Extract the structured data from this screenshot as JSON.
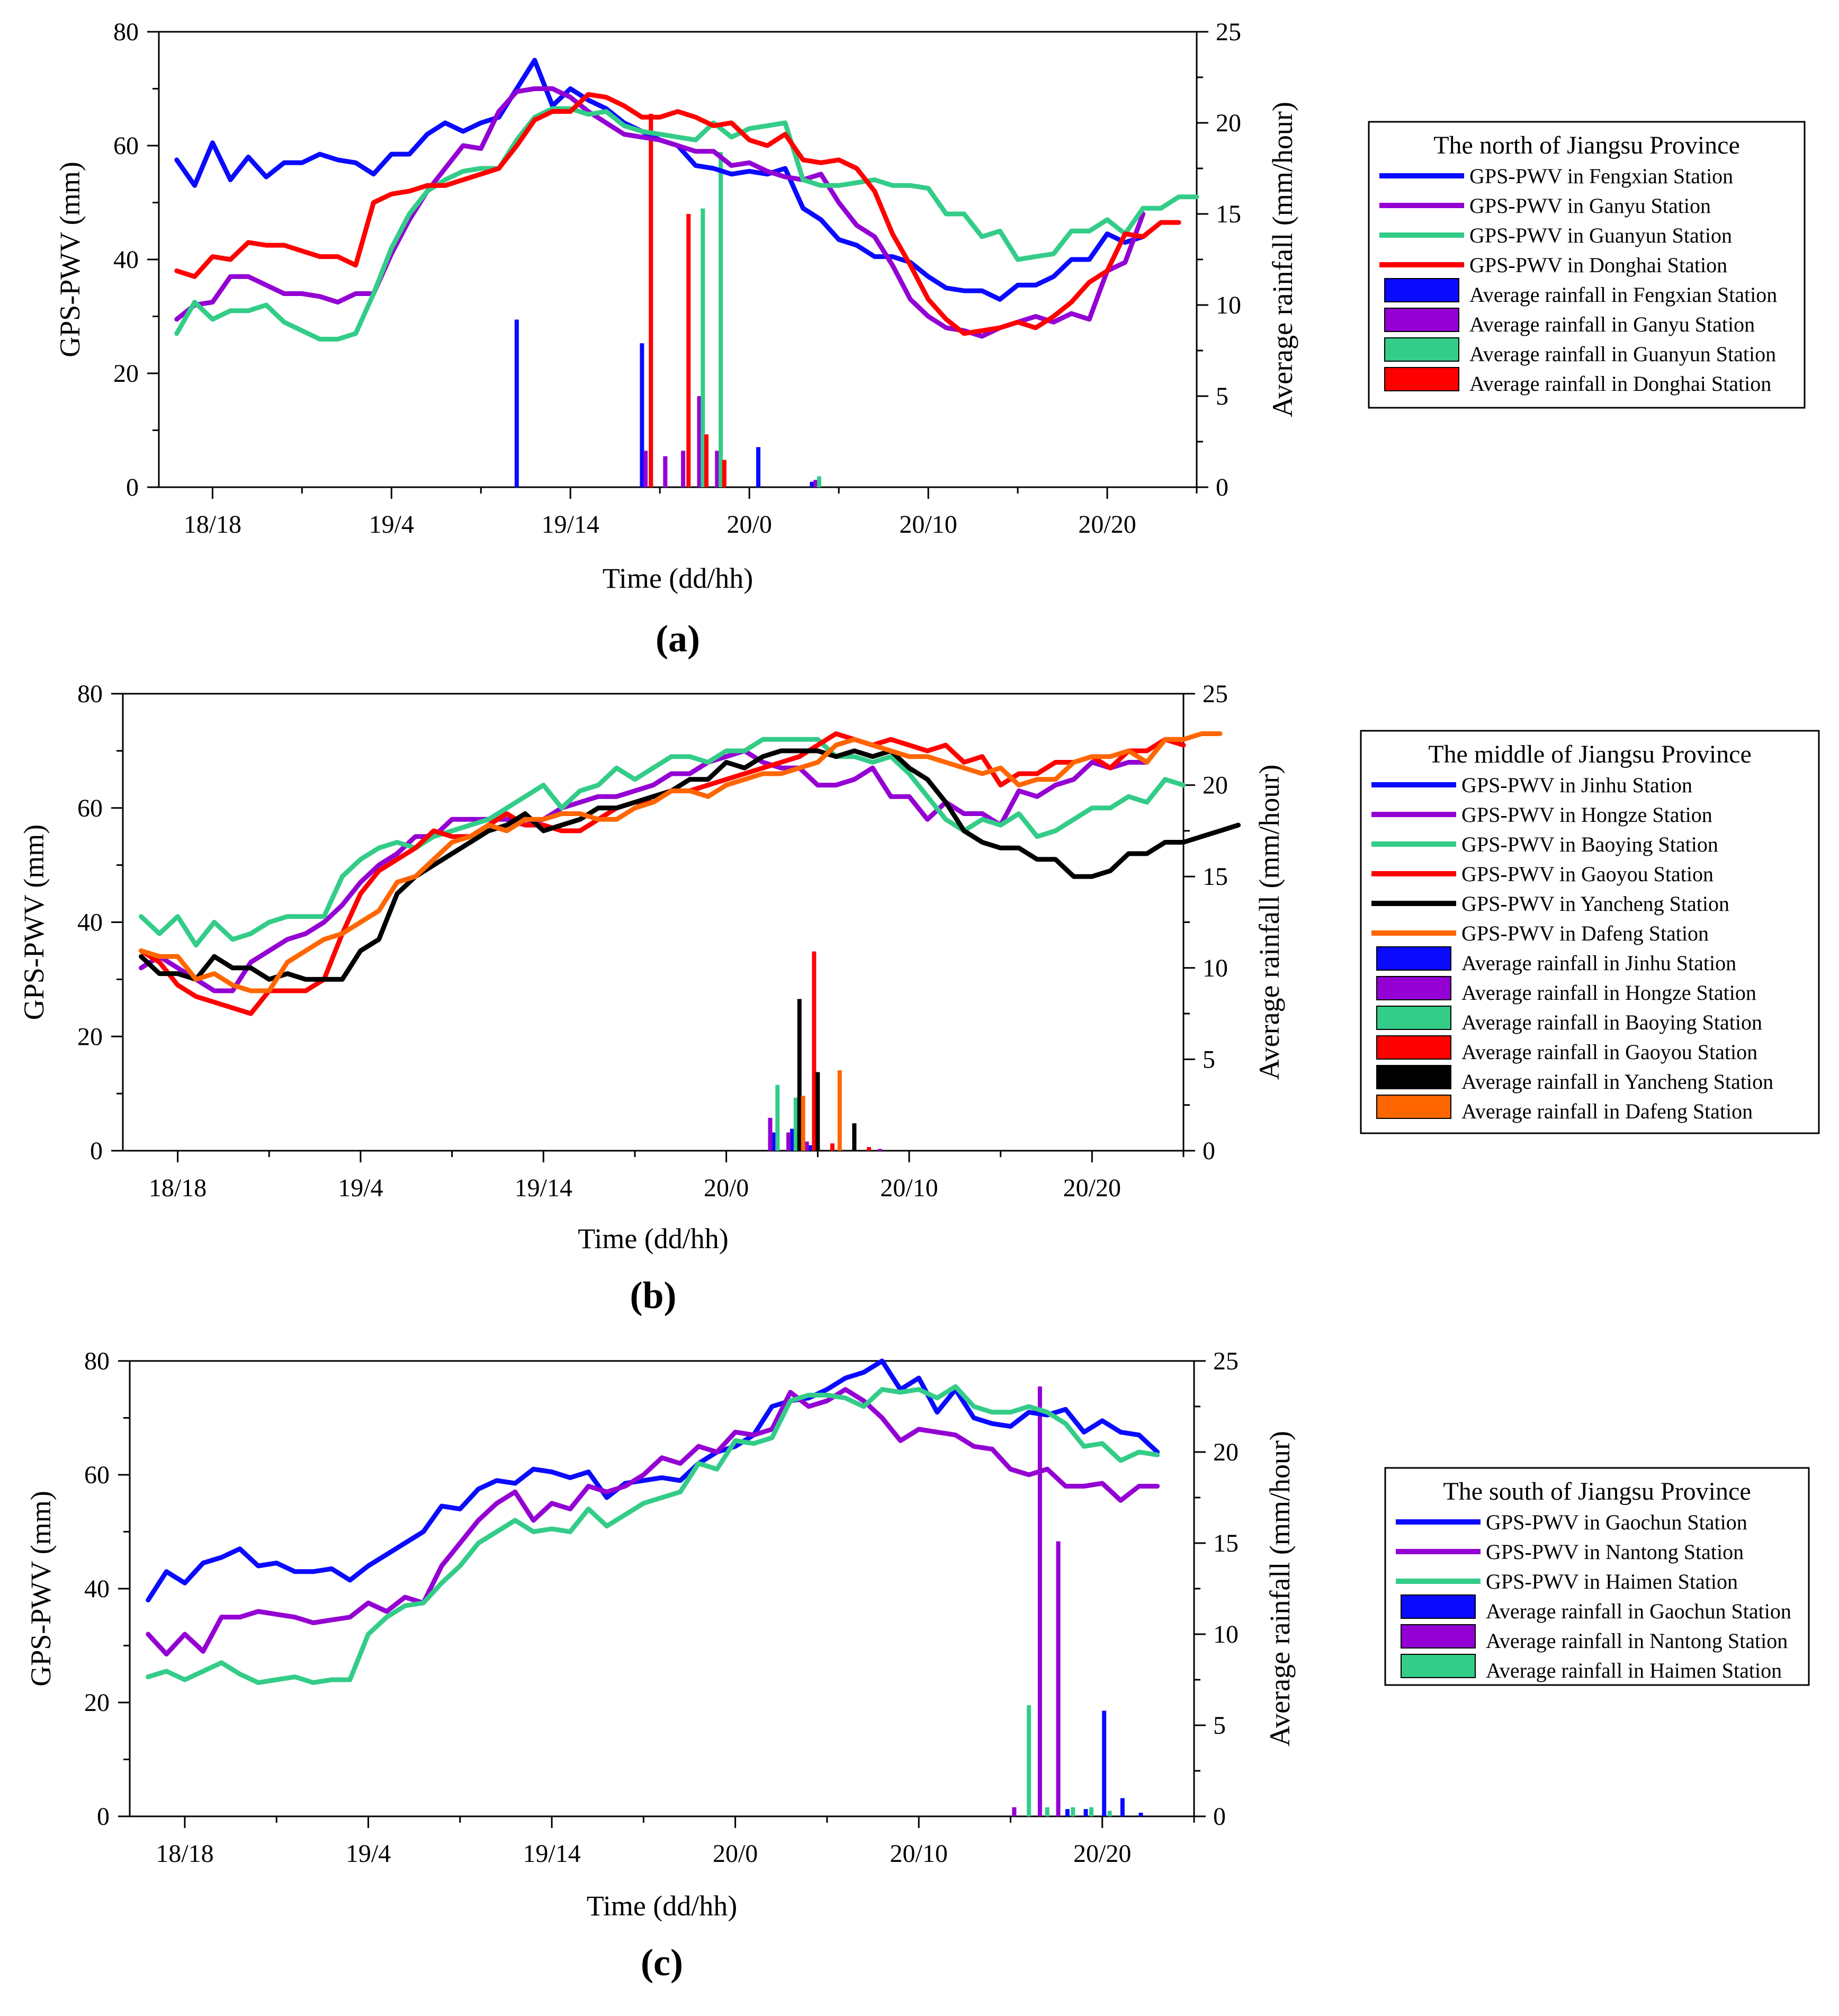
{
  "figure": {
    "panels": 3
  },
  "chart_data": [
    {
      "type": "line+bar",
      "panel_label": "(a)",
      "xlabel": "Time (dd/hh)",
      "ylabel": "GPS-PWV (mm)",
      "y2label": "Average rainfall  (mm/hour)",
      "x_ticks": [
        "18/18",
        "19/4",
        "19/14",
        "20/0",
        "20/10",
        "20/20"
      ],
      "x_tick_hours": [
        0,
        10,
        20,
        30,
        40,
        50
      ],
      "xlim": [
        -3,
        55
      ],
      "ylim": [
        0,
        80
      ],
      "y_ticks": [
        0,
        20,
        40,
        60,
        80
      ],
      "y2lim": [
        0,
        25
      ],
      "y2_ticks": [
        0,
        5,
        10,
        15,
        20,
        25
      ],
      "legend_title": "The north of Jiangsu Province",
      "legend_position": "right",
      "series": [
        {
          "name": "GPS-PWV in Fengxian Station",
          "color": "#0a0aff",
          "x0": -2,
          "values": [
            57.5,
            53,
            60.5,
            54,
            58,
            54.5,
            57,
            57,
            58.5,
            57.5,
            57,
            55,
            58.5,
            58.5,
            62,
            64,
            62.5,
            64,
            65,
            70,
            75,
            67,
            70,
            68,
            66.5,
            64,
            62.5,
            61,
            60,
            56.5,
            56,
            55,
            55.5,
            55,
            56,
            49,
            47,
            43.5,
            42.5,
            40.5,
            40.5,
            39.5,
            37,
            35,
            34.5,
            34.5,
            33,
            35.5,
            35.5,
            37,
            40,
            40,
            44.5,
            43,
            44
          ]
        },
        {
          "name": "GPS-PWV in Ganyu Station",
          "color": "#9400d3",
          "x0": -2,
          "values": [
            29.5,
            32,
            32.5,
            37,
            37,
            35.5,
            34,
            34,
            33.5,
            32.5,
            34,
            34,
            41,
            47,
            52,
            56,
            60,
            59.5,
            66,
            69.5,
            70,
            70,
            68.5,
            66,
            64,
            62,
            61.5,
            61,
            60,
            59,
            59,
            56.5,
            57,
            55.5,
            54.5,
            54,
            55,
            50,
            46,
            44,
            39,
            33,
            30,
            28,
            27.5,
            26.5,
            28,
            29,
            30,
            29,
            30.5,
            29.5,
            38,
            39.5,
            48
          ]
        },
        {
          "name": "GPS-PWV in Guanyun Station",
          "color": "#33cc88",
          "x0": -2,
          "values": [
            27,
            32.5,
            29.5,
            31,
            31,
            32,
            29,
            27.5,
            26,
            26,
            27,
            34,
            42,
            48,
            52,
            54,
            55.5,
            56,
            56,
            61,
            65,
            66.5,
            66.5,
            65.5,
            66,
            63.5,
            62.5,
            62,
            61.5,
            61,
            64,
            61.5,
            63,
            63.5,
            64,
            54,
            53,
            53,
            53.5,
            54,
            53,
            53,
            52.5,
            48,
            48,
            44,
            45,
            40,
            40.5,
            41,
            45,
            45,
            47,
            44.5,
            49,
            49,
            51,
            51
          ]
        },
        {
          "name": "GPS-PWV in Donghai Station",
          "color": "#ff0000",
          "x0": -2,
          "values": [
            38,
            37,
            40.5,
            40,
            43,
            42.5,
            42.5,
            41.5,
            40.5,
            40.5,
            39,
            50,
            51.5,
            52,
            53,
            53,
            54,
            55,
            56,
            60,
            64.5,
            66,
            66,
            69,
            68.5,
            67,
            65,
            65,
            66,
            65,
            63.5,
            64,
            61,
            60,
            62,
            57.5,
            57,
            57.5,
            56,
            52,
            44.5,
            39,
            33,
            29.5,
            27,
            27.5,
            28,
            29,
            28,
            30,
            32.5,
            36,
            38,
            44.5,
            44,
            46.5,
            46.5
          ]
        }
      ],
      "bars": [
        {
          "name": "Average rainfall in Fengxian Station",
          "color": "#0a0aff",
          "x": [
            17,
            24,
            30.5,
            33.5
          ],
          "values": [
            9.2,
            7.9,
            2.2,
            0.3
          ]
        },
        {
          "name": "Average rainfall in Ganyu Station",
          "color": "#9400d3",
          "x": [
            24.2,
            25.3,
            26.3,
            27.2,
            28.2,
            33.7
          ],
          "values": [
            2.0,
            1.7,
            2.0,
            5.0,
            2.0,
            0.4
          ]
        },
        {
          "name": "Average rainfall in Guanyun Station",
          "color": "#33cc88",
          "x": [
            27.4,
            28.4,
            33.9
          ],
          "values": [
            15.3,
            18.4,
            0.6
          ]
        },
        {
          "name": "Average rainfall in Donghai Station",
          "color": "#ff0000",
          "x": [
            24.5,
            26.6,
            27.6,
            28.6
          ],
          "values": [
            20.5,
            15.0,
            2.9,
            1.5
          ]
        }
      ]
    },
    {
      "type": "line+bar",
      "panel_label": "(b)",
      "xlabel": "Time (dd/hh)",
      "ylabel": "GPS-PWV (mm)",
      "y2label": "Average rainfall  (mm/hour)",
      "x_ticks": [
        "18/18",
        "19/4",
        "19/14",
        "20/0",
        "20/10",
        "20/20"
      ],
      "x_tick_hours": [
        0,
        10,
        20,
        30,
        40,
        50
      ],
      "xlim": [
        -3,
        55
      ],
      "ylim": [
        0,
        80
      ],
      "y_ticks": [
        0,
        20,
        40,
        60,
        80
      ],
      "y2lim": [
        0,
        25
      ],
      "y2_ticks": [
        0,
        5,
        10,
        15,
        20,
        25
      ],
      "legend_title": "The middle of Jiangsu Province",
      "legend_position": "right",
      "series": [
        {
          "name": "GPS-PWV in Jinhu Station",
          "color": "#0a0aff",
          "x0": -2,
          "values": []
        },
        {
          "name": "GPS-PWV in Hongze Station",
          "color": "#9400d3",
          "x0": -2,
          "values": [
            32,
            34,
            32,
            30,
            28,
            28,
            33,
            35,
            37,
            38,
            40,
            43,
            47,
            50,
            52,
            55,
            55,
            58,
            58,
            58,
            58,
            57,
            58,
            60,
            61,
            62,
            62,
            63,
            64,
            66,
            66,
            68,
            69,
            70,
            68,
            67,
            67,
            64,
            64,
            65,
            67,
            62,
            62,
            58,
            61,
            59,
            59,
            57,
            63,
            62,
            64,
            65,
            68,
            67,
            68,
            68
          ]
        },
        {
          "name": "GPS-PWV in Baoying Station",
          "color": "#33cc88",
          "x0": -2,
          "values": [
            41,
            38,
            41,
            36,
            40,
            37,
            38,
            40,
            41,
            41,
            41,
            48,
            51,
            53,
            54,
            53,
            55,
            56,
            57,
            58,
            60,
            62,
            64,
            60,
            63,
            64,
            67,
            65,
            67,
            69,
            69,
            68,
            70,
            70,
            72,
            72,
            72,
            72,
            69,
            69,
            68,
            69,
            66,
            62,
            58,
            56,
            58,
            57,
            59,
            55,
            56,
            58,
            60,
            60,
            62,
            61,
            65,
            64
          ]
        },
        {
          "name": "GPS-PWV in Gaoyou Station",
          "color": "#ff0000",
          "x0": -2,
          "values": [
            35,
            33,
            29,
            27,
            26,
            25,
            24,
            28,
            28,
            28,
            30,
            38,
            45,
            49,
            51,
            53,
            56,
            55,
            55,
            57,
            59,
            57,
            57,
            56,
            56,
            58,
            60,
            61,
            61,
            63,
            63,
            64,
            65,
            66,
            67,
            68,
            69,
            71,
            73,
            72,
            71,
            72,
            71,
            70,
            71,
            68,
            69,
            64,
            66,
            66,
            68,
            68,
            69,
            67,
            70,
            70,
            72,
            71
          ]
        },
        {
          "name": "GPS-PWV in Yancheng Station",
          "color": "#000000",
          "x0": -2,
          "values": [
            34,
            31,
            31,
            30,
            34,
            32,
            32,
            30,
            31,
            30,
            30,
            30,
            35,
            37,
            45,
            48,
            50,
            52,
            54,
            56,
            57,
            59,
            56,
            57,
            58,
            60,
            60,
            61,
            62,
            63,
            65,
            65,
            68,
            67,
            69,
            70,
            70,
            70,
            69,
            70,
            69,
            70,
            67,
            65,
            61,
            56,
            54,
            53,
            53,
            51,
            51,
            48,
            48,
            49,
            52,
            52,
            54,
            54,
            55,
            56,
            57
          ]
        },
        {
          "name": "GPS-PWV in Dafeng Station",
          "color": "#ff6600",
          "x0": -2,
          "values": [
            35,
            34,
            34,
            30,
            31,
            29,
            28,
            28,
            33,
            35,
            37,
            38,
            40,
            42,
            47,
            48,
            51,
            54,
            55,
            57,
            56,
            58,
            58,
            59,
            59,
            58,
            58,
            60,
            61,
            63,
            63,
            62,
            64,
            65,
            66,
            66,
            67,
            68,
            71,
            72,
            71,
            70,
            69,
            69,
            68,
            67,
            66,
            67,
            64,
            65,
            65,
            68,
            69,
            69,
            70,
            68,
            72,
            72,
            73,
            73
          ]
        }
      ],
      "bars": [
        {
          "name": "Average rainfall in Jinhu Station",
          "color": "#0a0aff",
          "x": [
            32.6,
            33.6,
            34.6
          ],
          "values": [
            1.0,
            1.2,
            0.3
          ]
        },
        {
          "name": "Average rainfall in Hongze Station",
          "color": "#9400d3",
          "x": [
            32.4,
            33.4,
            34.4,
            38.4
          ],
          "values": [
            1.8,
            1.0,
            0.5,
            0.1
          ]
        },
        {
          "name": "Average rainfall in Baoying Station",
          "color": "#33cc88",
          "x": [
            32.8,
            33.8
          ],
          "values": [
            3.6,
            2.9
          ]
        },
        {
          "name": "Average rainfall in Gaoyou Station",
          "color": "#ff0000",
          "x": [
            34.8,
            35.8,
            37.8
          ],
          "values": [
            10.9,
            0.4,
            0.2
          ]
        },
        {
          "name": "Average rainfall in Yancheng Station",
          "color": "#000000",
          "x": [
            34.0,
            35.0,
            37.0
          ],
          "values": [
            8.3,
            4.3,
            1.5
          ]
        },
        {
          "name": "Average rainfall in Dafeng Station",
          "color": "#ff6600",
          "x": [
            34.2,
            36.2
          ],
          "values": [
            3.0,
            4.4
          ]
        }
      ]
    },
    {
      "type": "line+bar",
      "panel_label": "(c)",
      "xlabel": "Time (dd/hh)",
      "ylabel": "GPS-PWV (mm)",
      "y2label": "Average rainfall  (mm/hour)",
      "x_ticks": [
        "18/18",
        "19/4",
        "19/14",
        "20/0",
        "20/10",
        "20/20"
      ],
      "x_tick_hours": [
        0,
        10,
        20,
        30,
        40,
        50
      ],
      "xlim": [
        -3,
        55
      ],
      "ylim": [
        0,
        80
      ],
      "y_ticks": [
        0,
        20,
        40,
        60,
        80
      ],
      "y2lim": [
        0,
        25
      ],
      "y2_ticks": [
        0,
        5,
        10,
        15,
        20,
        25
      ],
      "legend_title": "The south of Jiangsu Province",
      "legend_position": "right",
      "series": [
        {
          "name": "GPS-PWV in Gaochun Station",
          "color": "#0a0aff",
          "x0": -2,
          "values": [
            38,
            43,
            41,
            44.5,
            45.5,
            47,
            44,
            44.5,
            43,
            43,
            43.5,
            41.5,
            44,
            46,
            48,
            50,
            54.5,
            54,
            57.5,
            59,
            58.5,
            61,
            60.5,
            59.5,
            60.5,
            56,
            58.5,
            59,
            59.5,
            59,
            62,
            64,
            65,
            67,
            72,
            73,
            73.5,
            75,
            77,
            78,
            80,
            75,
            77,
            71,
            75,
            70,
            69,
            68.5,
            71,
            70.5,
            71.5,
            67.5,
            69.5,
            67.5,
            67,
            64
          ]
        },
        {
          "name": "GPS-PWV in Nantong Station",
          "color": "#9400d3",
          "x0": -2,
          "values": [
            32,
            28.5,
            32,
            29,
            35,
            35,
            36,
            35.5,
            35,
            34,
            34.5,
            35,
            37.5,
            36,
            38.5,
            37.5,
            44,
            48,
            52,
            55,
            57,
            52,
            55,
            54,
            58,
            57,
            58,
            60,
            63,
            62,
            65,
            64,
            67.5,
            67,
            68,
            74.5,
            72,
            73,
            75,
            73,
            70,
            66,
            68,
            67.5,
            67,
            65,
            64.5,
            61,
            60,
            61,
            58,
            58,
            58.5,
            55.5,
            58,
            58
          ]
        },
        {
          "name": "GPS-PWV in Haimen Station",
          "color": "#33cc88",
          "x0": -2,
          "values": [
            24.5,
            25.5,
            24,
            25.5,
            27,
            25,
            23.5,
            24,
            24.5,
            23.5,
            24,
            24,
            32,
            35,
            37,
            37.5,
            41,
            44,
            48,
            50,
            52,
            50,
            50.5,
            50,
            54,
            51,
            53,
            55,
            56,
            57,
            62,
            61,
            66,
            65.5,
            66.5,
            73,
            74,
            74,
            73.5,
            72,
            75,
            74.5,
            75,
            73.5,
            75.5,
            72,
            71,
            71,
            72,
            71,
            69,
            65,
            65.5,
            62.5,
            64,
            63.5
          ]
        }
      ],
      "bars": [
        {
          "name": "Average rainfall in Gaochun Station",
          "color": "#0a0aff",
          "x": [
            48.1,
            49.1,
            50.1,
            51.1,
            52.1
          ],
          "values": [
            0.4,
            0.4,
            5.8,
            1.0,
            0.2
          ]
        },
        {
          "name": "Average rainfall in Nantong Station",
          "color": "#9400d3",
          "x": [
            45.2,
            46.6,
            47.6
          ],
          "values": [
            0.5,
            23.6,
            15.1
          ]
        },
        {
          "name": "Average rainfall in Haimen Station",
          "color": "#33cc88",
          "x": [
            46.0,
            47.0,
            48.4,
            49.4,
            50.4
          ],
          "values": [
            6.1,
            0.5,
            0.5,
            0.5,
            0.3
          ]
        }
      ]
    }
  ]
}
